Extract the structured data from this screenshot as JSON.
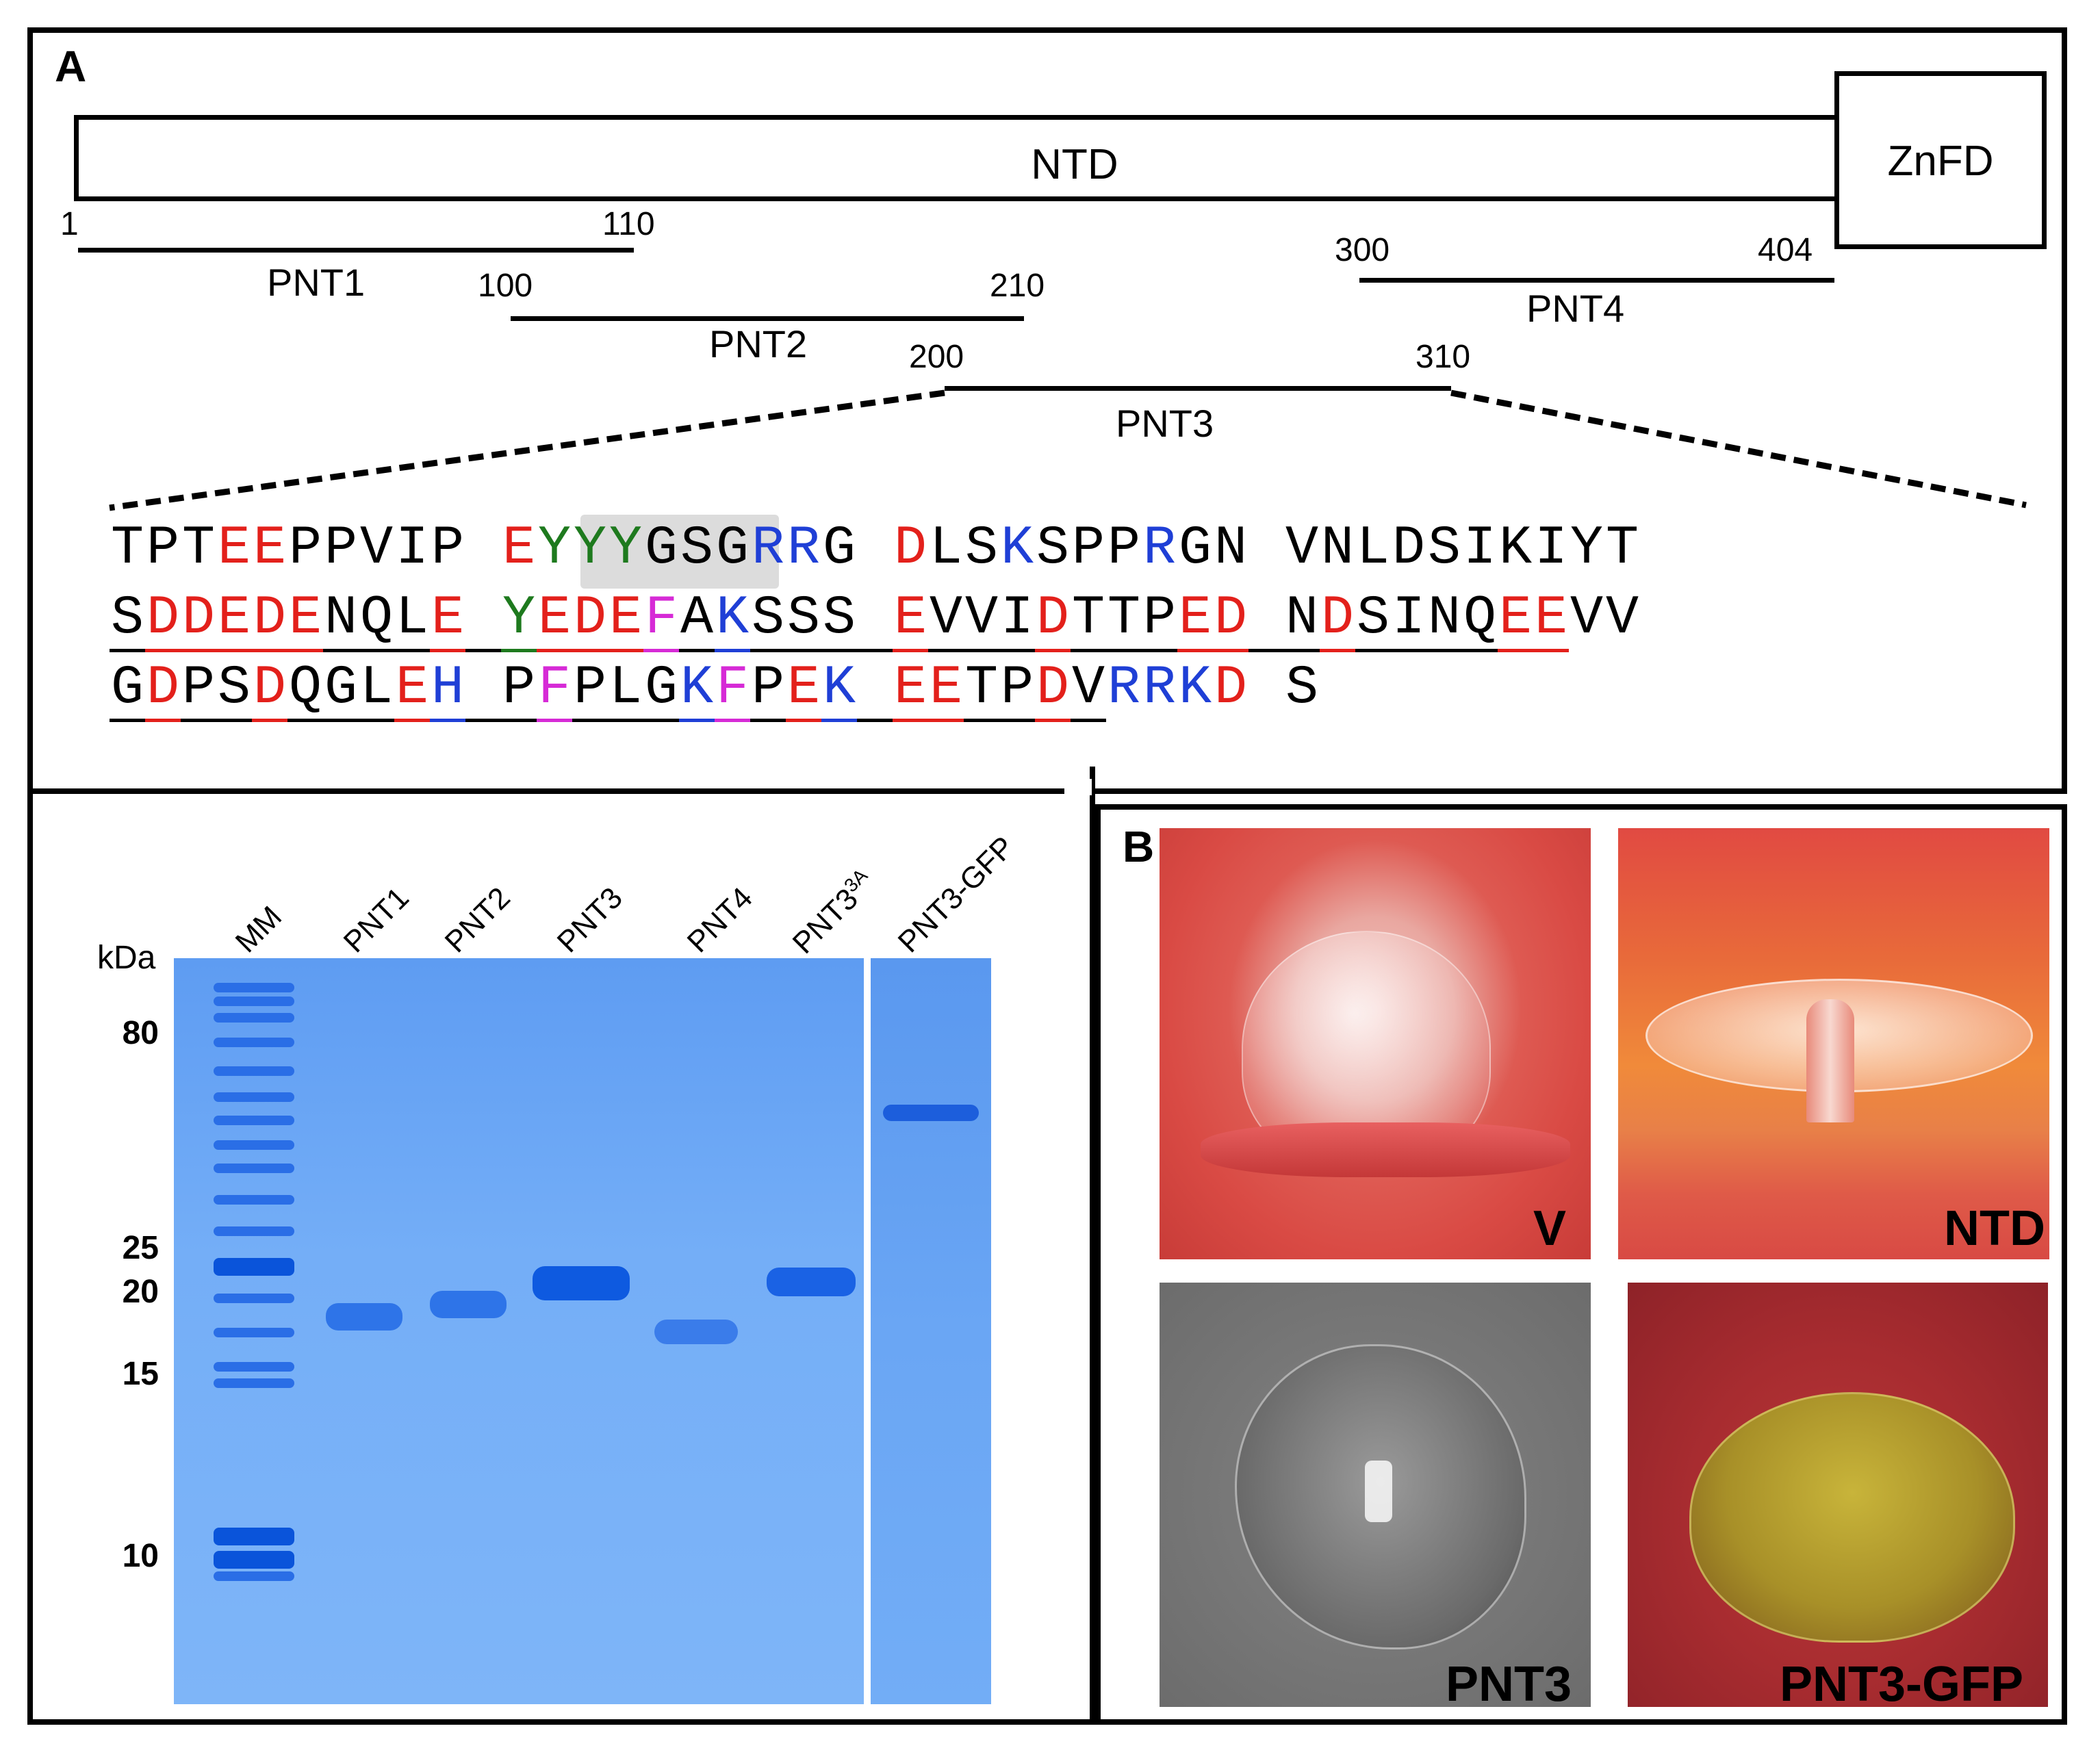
{
  "panel_a": {
    "letter": "A",
    "domains": {
      "ntd": "NTD",
      "znfd": "ZnFD"
    },
    "numbers": {
      "n1": "1",
      "n110": "110",
      "n100": "100",
      "n210": "210",
      "n200": "200",
      "n310": "310",
      "n300": "300",
      "n404": "404"
    },
    "fragments": {
      "pnt1": "PNT1",
      "pnt2": "PNT2",
      "pnt3": "PNT3",
      "pnt4": "PNT4"
    },
    "sequence_rows": [
      "TPTEEPPVIP EYYYGSGRRG DLSKSPPRGN VNLDSIKIYT",
      "SDDEDENQLE YEDEFAKSSS EVVIDTTPED NDSINQEEVV",
      "GDPSDQGLEH PFPLGKFPEK EETPDVRRKD S"
    ],
    "residue_colors": {
      "acidic": "#e3201b",
      "basic": "#1f3fd6",
      "tyrosine": "#1e7a1e",
      "phenylalanine": "#d62ad6",
      "other": "#000000",
      "highlight_bg": "#dcdcdc"
    }
  },
  "gel": {
    "unit": "kDa",
    "lanes": [
      "MM",
      "PNT1",
      "PNT2",
      "PNT3",
      "PNT4",
      "PNT3",
      "PNT3-GFP"
    ],
    "lane5_superscript": "3A",
    "markers": [
      "80",
      "25",
      "20",
      "15",
      "10"
    ],
    "gel_color": "#6fa8f5"
  },
  "panel_b": {
    "letter": "B",
    "photos": [
      "V",
      "NTD",
      "PNT3",
      "PNT3-GFP"
    ]
  }
}
